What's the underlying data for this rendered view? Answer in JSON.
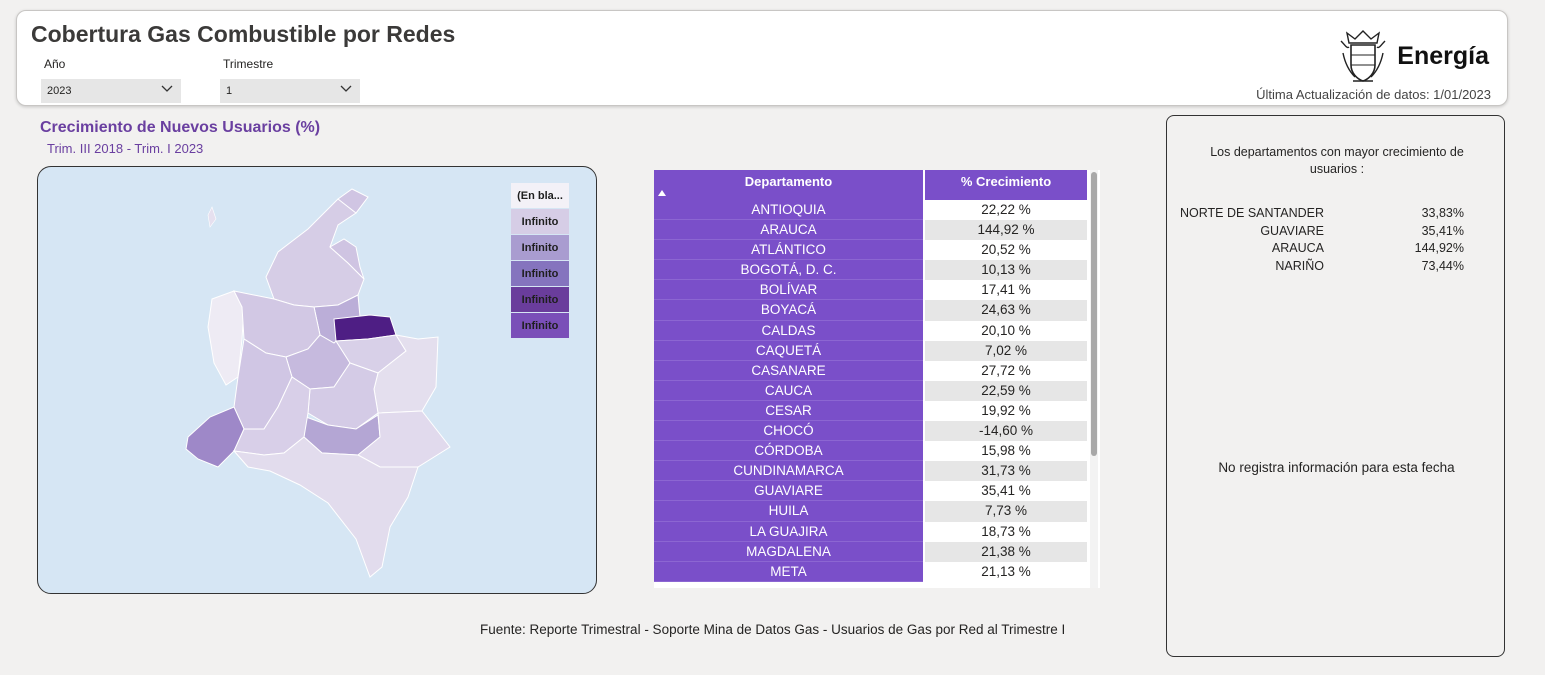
{
  "header": {
    "title": "Cobertura Gas Combustible por Redes",
    "year_label": "Año",
    "year_value": "2023",
    "quarter_label": "Trimestre",
    "quarter_value": "1",
    "brand_name": "Energía",
    "last_update": "Última Actualización de datos: 1/01/2023"
  },
  "map_section": {
    "title": "Crecimiento de Nuevos Usuarios (%)",
    "subtitle": "Trim. III 2018 - Trim. I 2023",
    "legend": [
      {
        "label": "(En bla...",
        "color": "#f3f1f7"
      },
      {
        "label": "Infinito",
        "color": "#d6cde6"
      },
      {
        "label": "Infinito",
        "color": "#a99cd0"
      },
      {
        "label": "Infinito",
        "color": "#8574be"
      },
      {
        "label": "Infinito",
        "color": "#6a3d9c"
      },
      {
        "label": "Infinito",
        "color": "#7a4fb8"
      }
    ]
  },
  "table": {
    "col_department": "Departamento",
    "col_growth": "% Crecimiento",
    "rows": [
      {
        "department": "ANTIOQUIA",
        "growth": "22,22 %"
      },
      {
        "department": "ARAUCA",
        "growth": "144,92 %"
      },
      {
        "department": "ATLÁNTICO",
        "growth": "20,52 %"
      },
      {
        "department": "BOGOTÁ, D. C.",
        "growth": "10,13 %"
      },
      {
        "department": "BOLÍVAR",
        "growth": "17,41 %"
      },
      {
        "department": "BOYACÁ",
        "growth": "24,63 %"
      },
      {
        "department": "CALDAS",
        "growth": "20,10 %"
      },
      {
        "department": "CAQUETÁ",
        "growth": "7,02 %"
      },
      {
        "department": "CASANARE",
        "growth": "27,72 %"
      },
      {
        "department": "CAUCA",
        "growth": "22,59 %"
      },
      {
        "department": "CESAR",
        "growth": "19,92 %"
      },
      {
        "department": "CHOCÓ",
        "growth": "-14,60 %"
      },
      {
        "department": "CÓRDOBA",
        "growth": "15,98 %"
      },
      {
        "department": "CUNDINAMARCA",
        "growth": "31,73 %"
      },
      {
        "department": "GUAVIARE",
        "growth": "35,41 %"
      },
      {
        "department": "HUILA",
        "growth": "7,73 %"
      },
      {
        "department": "LA GUAJIRA",
        "growth": "18,73 %"
      },
      {
        "department": "MAGDALENA",
        "growth": "21,38 %"
      },
      {
        "department": "META",
        "growth": "21,13 %"
      }
    ]
  },
  "source_text": "Fuente: Reporte Trimestral - Soporte Mina de Datos Gas - Usuarios de Gas por Red al Trimestre I",
  "right_panel": {
    "heading": "Los departamentos con mayor crecimiento de usuarios :",
    "top": [
      {
        "department": "NORTE DE SANTANDER",
        "value": "33,83%"
      },
      {
        "department": "GUAVIARE",
        "value": "35,41%"
      },
      {
        "department": "ARAUCA",
        "value": "144,92%"
      },
      {
        "department": "NARIÑO",
        "value": "73,44%"
      }
    ],
    "empty_message": "No registra información para esta fecha"
  },
  "colors": {
    "accent_purple": "#7a4fc9",
    "title_purple": "#6a3fa0",
    "map_water": "#d6e6f4"
  }
}
